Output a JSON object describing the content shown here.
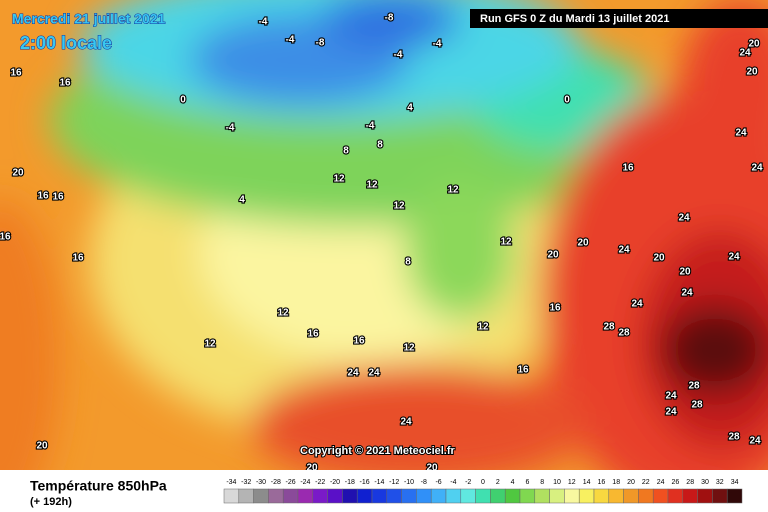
{
  "header": {
    "date": "Mercredi 21 juillet 2021",
    "time": "2:00 locale",
    "run": "Run GFS 0 Z du Mardi 13 juillet 2021"
  },
  "map": {
    "labels": [
      "16",
      "16",
      "20",
      "16",
      "16",
      "16",
      "16",
      "0",
      "-4",
      "-4",
      "-4",
      "-8",
      "-8",
      "-4",
      "-4",
      "4",
      "0",
      "-4",
      "8",
      "8",
      "4",
      "12",
      "12",
      "12",
      "12",
      "16",
      "24",
      "20",
      "20",
      "24",
      "20",
      "20",
      "24",
      "24",
      "24",
      "28",
      "28",
      "16",
      "12",
      "12",
      "8",
      "12",
      "12",
      "16",
      "16",
      "12",
      "16",
      "24",
      "24",
      "24",
      "20",
      "20",
      "20",
      "28",
      "24",
      "28",
      "24",
      "28",
      "24",
      "24",
      "20",
      "24",
      "24",
      "20"
    ]
  },
  "copyright": "Copyright © 2021 Meteociel.fr",
  "footer": {
    "title": "Température 850hPa",
    "lead": "(+ 192h)",
    "scale": {
      "ticks": [
        -34,
        -32,
        -30,
        -28,
        -26,
        -24,
        -22,
        -20,
        -18,
        -16,
        -14,
        -12,
        -10,
        -8,
        -6,
        -4,
        -2,
        0,
        2,
        4,
        6,
        8,
        10,
        12,
        14,
        16,
        18,
        20,
        22,
        24,
        26,
        28,
        30,
        32,
        34
      ],
      "colors": [
        "#d8d8d8",
        "#b4b4b4",
        "#8c8c8c",
        "#9a6a9a",
        "#8a4a9a",
        "#9a2ab0",
        "#7a1ac8",
        "#5a10c8",
        "#2010b0",
        "#1020d0",
        "#1838e0",
        "#2050e8",
        "#2870f0",
        "#3090f8",
        "#40b0f8",
        "#50d0f0",
        "#60e8e0",
        "#40e0b0",
        "#40d070",
        "#50c840",
        "#80d850",
        "#b0e060",
        "#d8f080",
        "#f8f8a0",
        "#f8f060",
        "#f8d840",
        "#f8b830",
        "#f09828",
        "#f07820",
        "#f05020",
        "#e03020",
        "#c81818",
        "#a01010",
        "#701010",
        "#300808"
      ]
    }
  }
}
